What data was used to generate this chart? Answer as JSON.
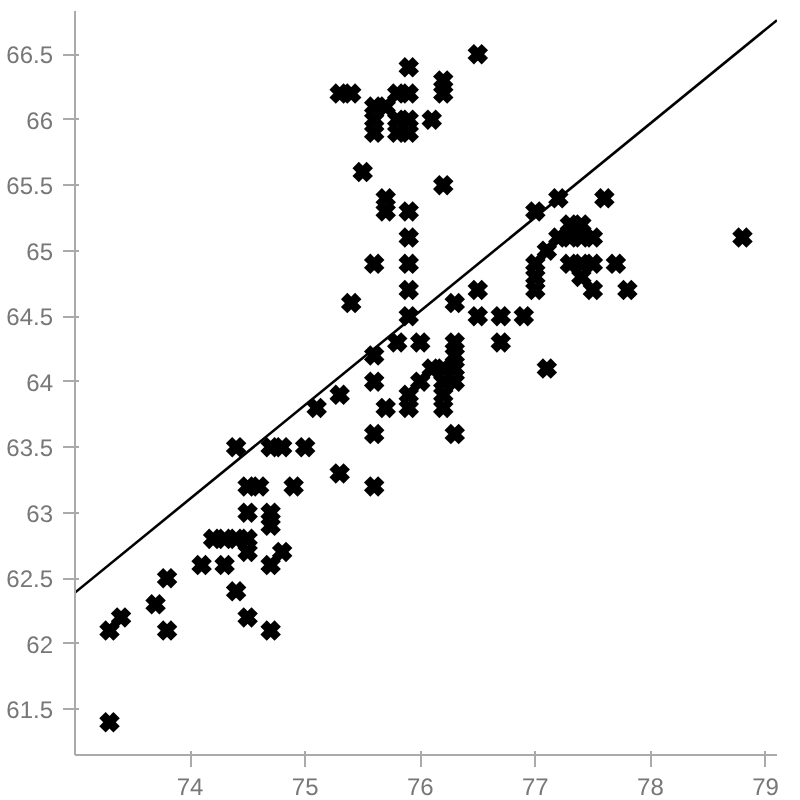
{
  "chart_data": {
    "type": "scatter",
    "grid": false,
    "xlim": [
      73.0,
      79.1
    ],
    "ylim": [
      61.15,
      66.83
    ],
    "xticks": [
      74,
      75,
      76,
      77,
      78,
      79
    ],
    "yticks": [
      61.5,
      62,
      62.5,
      63,
      63.5,
      64,
      64.5,
      65,
      65.5,
      66,
      66.5
    ],
    "series": [
      {
        "marker": "cross",
        "color": "#000000",
        "x": [
          73.3,
          73.4,
          73.3,
          73.7,
          73.8,
          73.8,
          74.1,
          74.2,
          74.3,
          74.3,
          74.4,
          74.4,
          74.4,
          74.5,
          74.5,
          74.5,
          74.5,
          74.6,
          74.5,
          74.7,
          74.8,
          74.7,
          74.7,
          74.7,
          74.7,
          74.8,
          74.9,
          75.0,
          75.1,
          75.3,
          75.6,
          75.6,
          75.7,
          75.3,
          75.4,
          75.6,
          75.6,
          75.6,
          75.7,
          75.8,
          75.8,
          75.8,
          75.5,
          75.7,
          75.7,
          75.6,
          75.4,
          75.6,
          75.8,
          75.6,
          75.3,
          75.9,
          75.9,
          75.9,
          75.9,
          76.2,
          76.2,
          76.1,
          76.5,
          76.2,
          75.9,
          75.9,
          75.9,
          75.9,
          75.9,
          77.0,
          77.2,
          77.6,
          77.3,
          77.4,
          77.3,
          77.4,
          77.5,
          77.2,
          77.1,
          77.0,
          77.0,
          77.0,
          77.3,
          77.4,
          77.5,
          77.4,
          77.5,
          77.7,
          77.8,
          78.8,
          76.5,
          76.5,
          76.7,
          76.9,
          76.3,
          76.7,
          77.1,
          76.0,
          76.3,
          76.3,
          76.1,
          76.2,
          76.3,
          76.0,
          76.2,
          76.2,
          76.3,
          75.9,
          76.2,
          76.3,
          75.9
        ],
        "values": [
          62.1,
          62.2,
          61.4,
          62.3,
          62.5,
          62.1,
          62.6,
          62.8,
          62.6,
          62.8,
          62.4,
          63.5,
          62.8,
          62.8,
          62.7,
          63.0,
          63.2,
          63.2,
          62.2,
          63.5,
          63.5,
          63.0,
          62.9,
          62.6,
          62.1,
          62.7,
          63.2,
          63.5,
          63.8,
          63.3,
          63.6,
          63.2,
          63.8,
          66.2,
          66.2,
          66.1,
          66.0,
          65.9,
          66.1,
          66.2,
          66.0,
          65.9,
          65.6,
          65.4,
          65.3,
          64.9,
          64.6,
          64.2,
          64.3,
          64.0,
          63.9,
          66.4,
          66.2,
          66.0,
          65.9,
          66.3,
          66.2,
          66.0,
          66.5,
          65.5,
          65.3,
          65.1,
          64.9,
          64.7,
          64.5,
          65.3,
          65.4,
          65.4,
          65.2,
          65.2,
          65.1,
          65.1,
          65.1,
          65.1,
          65.0,
          64.9,
          64.8,
          64.7,
          64.9,
          64.9,
          64.9,
          64.8,
          64.7,
          64.9,
          64.7,
          65.1,
          64.7,
          64.5,
          64.5,
          64.5,
          64.6,
          64.3,
          64.1,
          64.3,
          64.3,
          64.2,
          64.1,
          64.1,
          64.1,
          64.0,
          64.0,
          63.9,
          64.0,
          63.9,
          63.8,
          63.6,
          63.8
        ]
      },
      {
        "type": "line",
        "marker": "none",
        "color": "#000000",
        "line_style": "solid",
        "x": [
          73.0,
          79.1
        ],
        "values": [
          62.39,
          66.76
        ]
      }
    ]
  }
}
